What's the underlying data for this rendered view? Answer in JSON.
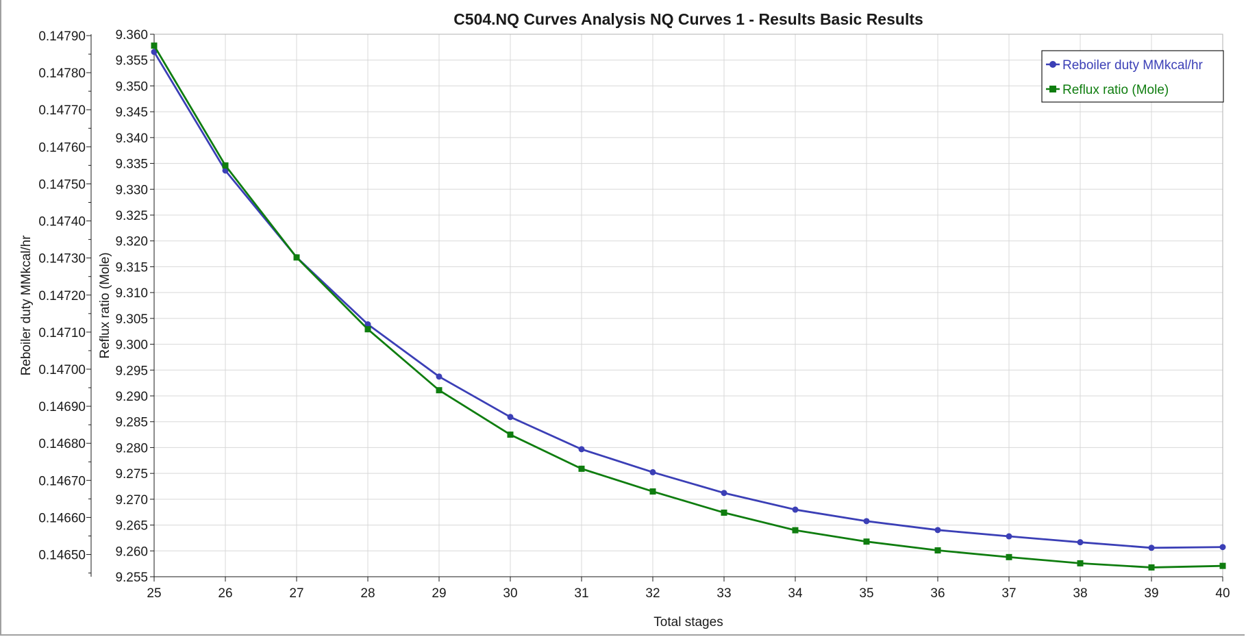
{
  "chart_data": {
    "type": "line",
    "title": "C504.NQ Curves Analysis NQ Curves 1 - Results Basic Results",
    "xlabel": "Total stages",
    "y1label": "Reboiler duty MMkcal/hr",
    "y2label": "Reflux ratio (Mole)",
    "x": [
      25,
      26,
      27,
      28,
      29,
      30,
      31,
      32,
      33,
      34,
      35,
      36,
      37,
      38,
      39,
      40
    ],
    "xlim": [
      25,
      40
    ],
    "y1lim": [
      0.14644,
      0.1479
    ],
    "y1ticks": [
      "0.14790",
      "0.14780",
      "0.14770",
      "0.14760",
      "0.14750",
      "0.14740",
      "0.14730",
      "0.14720",
      "0.14710",
      "0.14700",
      "0.14690",
      "0.14680",
      "0.14670",
      "0.14660",
      "0.14650"
    ],
    "y2lim": [
      9.255,
      9.36
    ],
    "y2ticks": [
      "9.360",
      "9.355",
      "9.350",
      "9.345",
      "9.340",
      "9.335",
      "9.330",
      "9.325",
      "9.320",
      "9.315",
      "9.310",
      "9.305",
      "9.300",
      "9.295",
      "9.290",
      "9.285",
      "9.280",
      "9.275",
      "9.270",
      "9.265",
      "9.260",
      "9.255"
    ],
    "grid": true,
    "legend_position": "top-right",
    "series": [
      {
        "name": "Reboiler duty MMkcal/hr",
        "axis": "left",
        "color": "#3b3fb6",
        "marker": "circle",
        "values": [
          0.147856,
          0.147536,
          0.147302,
          0.147121,
          0.14698,
          0.146871,
          0.146784,
          0.146722,
          0.146666,
          0.146621,
          0.14659,
          0.146566,
          0.146549,
          0.146533,
          0.146518,
          0.14652
        ]
      },
      {
        "name": "Reflux ratio (Mole)",
        "axis": "right",
        "color": "#0f7d0f",
        "marker": "square",
        "values": [
          9.3578,
          9.3346,
          9.3168,
          9.3029,
          9.2911,
          9.2825,
          9.2759,
          9.2715,
          9.2674,
          9.264,
          9.2618,
          9.2601,
          9.2588,
          9.2576,
          9.2568,
          9.2571
        ]
      }
    ]
  }
}
